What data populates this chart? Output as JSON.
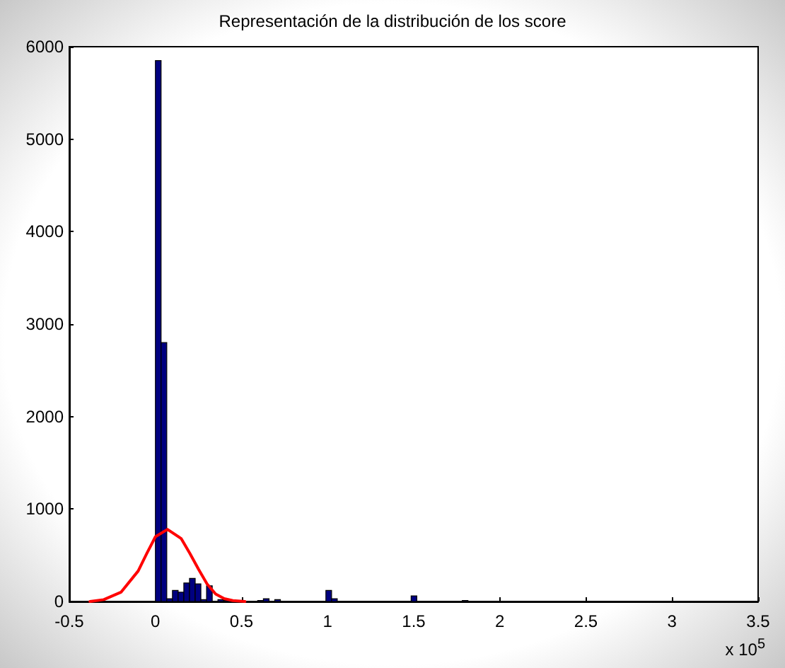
{
  "chart_data": {
    "type": "histogram",
    "title": "Representación de la distribución de los score",
    "annotations": [
      "x 10$^{5}$"
    ],
    "bins": [
      0,
      0.033,
      0.066,
      0.099,
      0.132,
      0.165,
      0.198,
      0.231,
      0.264,
      0.297,
      0.33,
      0.363,
      0.396,
      0.429,
      0.462,
      0.495,
      0.528,
      0.561,
      0.594,
      0.627,
      0.66,
      0.693,
      0.726,
      0.759,
      0.792,
      0.825,
      0.858,
      0.891,
      0.924,
      0.957,
      0.99,
      1.023,
      1.056,
      1.089,
      1.122,
      1.155,
      1.188,
      1.221,
      1.254,
      1.287,
      1.32,
      1.353,
      1.386,
      1.419,
      1.452,
      1.485,
      1.518,
      1.551,
      1.584,
      1.617,
      1.65,
      1.683,
      1.716,
      1.749,
      1.782,
      1.815,
      1.848,
      1.881,
      1.914,
      1.947,
      1.98,
      2.013,
      2.046,
      2.079,
      2.112,
      2.145,
      2.178,
      2.211,
      2.244,
      2.277,
      2.31,
      2.343,
      2.376,
      2.409,
      2.442,
      2.475,
      2.508,
      2.541,
      2.574,
      2.607,
      2.64,
      2.673,
      2.706,
      2.739,
      2.772,
      2.805,
      2.838,
      2.871,
      2.904,
      2.937,
      2.97,
      3.003,
      3.036,
      3.069,
      3.102,
      3.135,
      3.168,
      3.201,
      3.234,
      3.267,
      3.3
    ],
    "values": [
      5850,
      2800,
      30,
      120,
      100,
      200,
      250,
      190,
      20,
      170,
      0,
      20,
      10,
      10,
      0,
      0,
      0,
      0,
      10,
      30,
      0,
      20,
      0,
      0,
      0,
      0,
      0,
      0,
      0,
      0,
      120,
      30,
      0,
      0,
      0,
      0,
      0,
      0,
      0,
      0,
      0,
      0,
      0,
      0,
      0,
      60,
      0,
      0,
      0,
      0,
      0,
      0,
      0,
      0,
      10,
      0,
      0,
      0,
      0,
      0,
      0,
      0,
      0,
      0,
      0,
      0,
      0,
      0,
      0,
      0,
      0,
      0,
      0,
      0,
      0,
      0,
      0,
      0,
      0,
      0,
      0,
      0,
      0,
      0,
      0,
      0,
      0,
      0,
      0,
      0,
      0,
      0,
      0,
      0,
      0,
      0,
      0,
      0,
      0,
      0
    ],
    "color": "#000080",
    "series": [
      {
        "type": "line",
        "color": "#ff0000",
        "x": [
          -0.38,
          -0.3,
          -0.2,
          -0.1,
          -0.05,
          0,
          0.07,
          0.15,
          0.2,
          0.25,
          0.3,
          0.35,
          0.4,
          0.45,
          0.52
        ],
        "values": [
          0,
          20,
          100,
          330,
          520,
          700,
          780,
          680,
          520,
          350,
          190,
          80,
          30,
          10,
          0
        ]
      }
    ],
    "xlim": [
      -0.5,
      3.5
    ],
    "xticks": [
      -0.5,
      0,
      0.5,
      1,
      1.5,
      2,
      2.5,
      3,
      3.5
    ],
    "ylim": [
      0,
      6000
    ],
    "yticks": [
      0,
      1000,
      2000,
      3000,
      4000,
      5000,
      6000
    ],
    "grid": false,
    "marker": "none",
    "line_style": "solid"
  }
}
